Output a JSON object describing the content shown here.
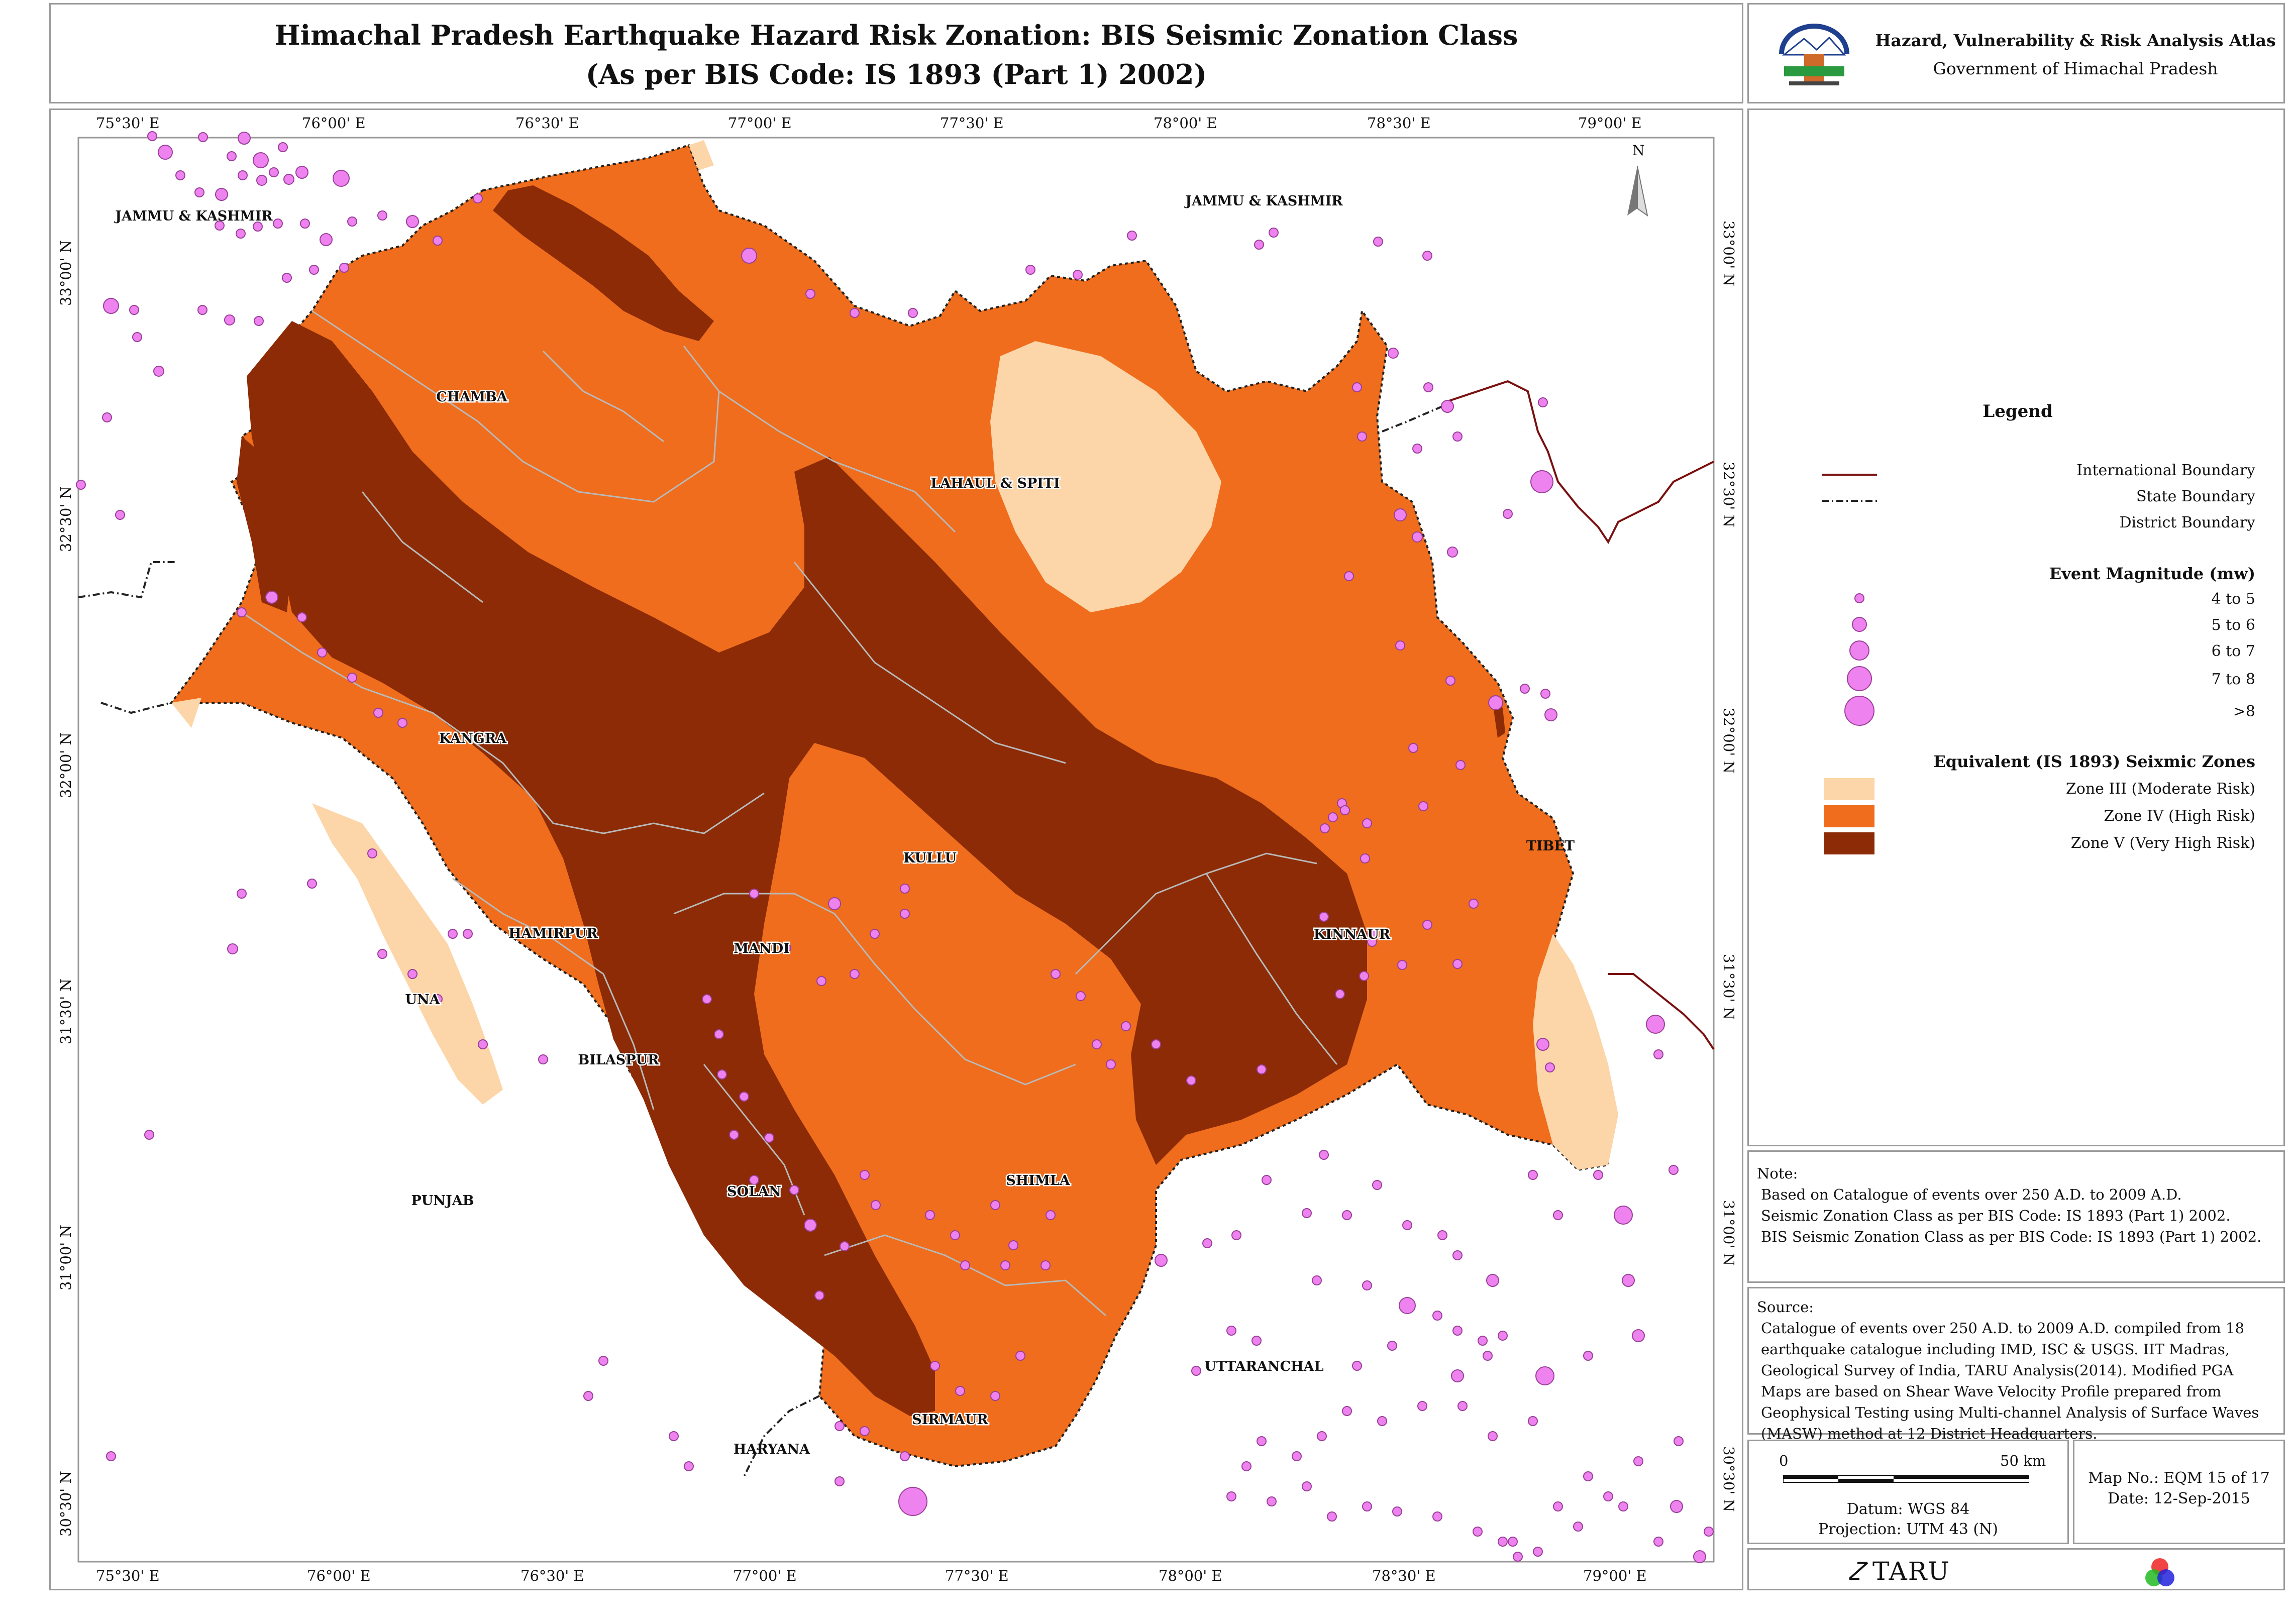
{
  "title": {
    "line1": "Himachal Pradesh Earthquake Hazard Risk Zonation: BIS Seismic Zonation Class",
    "line2": "(As per BIS Code: IS 1893 (Part 1) 2002)"
  },
  "atlas": {
    "name": "Hazard, Vulnerability & Risk Analysis Atlas",
    "org": "Government of Himachal Pradesh"
  },
  "map": {
    "lon_ticks": [
      "75°30' E",
      "76°00' E",
      "76°30' E",
      "77°00' E",
      "77°30' E",
      "78°00' E",
      "78°30' E",
      "79°00' E"
    ],
    "lat_ticks": [
      "33°00' N",
      "32°30' N",
      "32°00' N",
      "31°30' N",
      "31°00' N",
      "30°30' N"
    ],
    "north_label": "N",
    "districts": [
      "CHAMBA",
      "LAHAUL & SPITI",
      "KANGRA",
      "KULLU",
      "KINNAUR",
      "HAMIRPUR",
      "MANDI",
      "UNA",
      "BILASPUR",
      "SHIMLA",
      "SOLAN",
      "SIRMAUR"
    ],
    "neighbors": [
      "JAMMU & KASHMIR",
      "JAMMU & KASHMIR",
      "TIBET",
      "PUNJAB",
      "UTTARANCHAL",
      "HARYANA"
    ],
    "colors": {
      "zone3": "#fcd5a8",
      "zone4": "#ef6d1c",
      "zone5": "#8c2b05",
      "event": "#ee82ee",
      "intl_boundary": "#7a1010"
    }
  },
  "legend": {
    "title": "Legend",
    "boundaries": [
      "International Boundary",
      "State Boundary",
      "District Boundary"
    ],
    "magnitude_title": "Event Magnitude (mw)",
    "magnitudes": [
      "4 to 5",
      "5 to 6",
      "6 to 7",
      "7 to 8",
      ">8"
    ],
    "zones_title": "Equivalent (IS 1893) Seixmic Zones",
    "zones": [
      "Zone III (Moderate Risk)",
      "Zone IV (High Risk)",
      "Zone V (Very High Risk)"
    ]
  },
  "note": {
    "heading": "Note:",
    "lines": [
      "Based on Catalogue of events over 250 A.D. to 2009 A.D.",
      "Seismic Zonation Class as per BIS Code: IS 1893 (Part 1) 2002.",
      "BIS Seismic Zonation Class as per BIS Code: IS 1893 (Part 1) 2002."
    ]
  },
  "source": {
    "heading": "Source:",
    "text": "Catalogue of events over 250 A.D. to 2009 A.D. compiled from 18 earthquake catalogue including IMD, ISC & USGS. IIT Madras, Geological Survey of India, TARU Analysis(2014). Modified PGA Maps are based on Shear Wave Velocity Profile prepared from Geophysical Testing using Multi-channel Analysis of Surface Waves (MASW) method at 12 District Headquarters."
  },
  "scale": {
    "start": "0",
    "end": "50 km",
    "datum": "Datum: WGS 84",
    "projection": "Projection: UTM 43 (N)"
  },
  "mapinfo": {
    "map_no": "Map No.: EQM 15 of 17",
    "date": "Date: 12-Sep-2015"
  },
  "brand": "TARU"
}
